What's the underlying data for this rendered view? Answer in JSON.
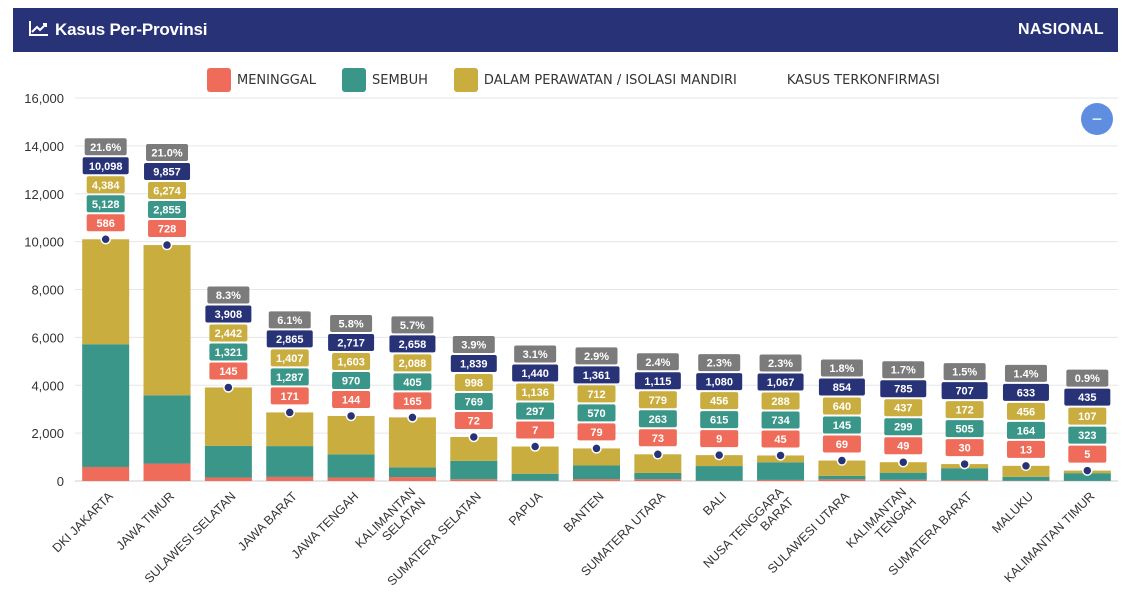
{
  "header": {
    "title": "Kasus Per-Provinsi",
    "scope": "NASIONAL",
    "icon": "line-chart-icon"
  },
  "zoom_button": {
    "label": "−",
    "icon": "minus-icon"
  },
  "colors": {
    "meninggal": "#ee6c59",
    "sembuh": "#3a9689",
    "perawatan": "#c9ad3f",
    "terkonfirmasi": "#283377",
    "percent": "#7b7b7b",
    "header": "#283377"
  },
  "chart_data": {
    "type": "bar",
    "stacked": true,
    "ylim": [
      0,
      16000
    ],
    "yticks": [
      "0",
      "2,000",
      "4,000",
      "6,000",
      "8,000",
      "10,000",
      "12,000",
      "14,000",
      "16,000"
    ],
    "ytick_values": [
      0,
      2000,
      4000,
      6000,
      8000,
      10000,
      12000,
      14000,
      16000
    ],
    "grid": true,
    "legend_position": "top-center",
    "categories": [
      "DKI JAKARTA",
      "JAWA TIMUR",
      "SULAWESI SELATAN",
      "JAWA BARAT",
      "JAWA TENGAH",
      "KALIMANTAN SELATAN",
      "SUMATERA SELATAN",
      "PAPUA",
      "BANTEN",
      "SUMATERA UTARA",
      "BALI",
      "NUSA TENGGARA BARAT",
      "SULAWESI UTARA",
      "KALIMANTAN TENGAH",
      "SUMATERA BARAT",
      "MALUKU",
      "KALIMANTAN TIMUR"
    ],
    "category_lines": [
      [
        "DKI JAKARTA"
      ],
      [
        "JAWA TIMUR"
      ],
      [
        "SULAWESI SELATAN"
      ],
      [
        "JAWA BARAT"
      ],
      [
        "JAWA TENGAH"
      ],
      [
        "KALIMANTAN",
        "SELATAN"
      ],
      [
        "SUMATERA SELATAN"
      ],
      [
        "PAPUA"
      ],
      [
        "BANTEN"
      ],
      [
        "SUMATERA UTARA"
      ],
      [
        "BALI"
      ],
      [
        "NUSA TENGGARA",
        "BARAT"
      ],
      [
        "SULAWESI UTARA"
      ],
      [
        "KALIMANTAN",
        "TENGAH"
      ],
      [
        "SUMATERA BARAT"
      ],
      [
        "MALUKU"
      ],
      [
        "KALIMANTAN TIMUR"
      ]
    ],
    "series": [
      {
        "name": "MENINGGAL",
        "key": "meninggal",
        "values": [
          586,
          728,
          145,
          171,
          144,
          165,
          72,
          7,
          79,
          73,
          9,
          45,
          69,
          49,
          30,
          13,
          5
        ]
      },
      {
        "name": "SEMBUH",
        "key": "sembuh",
        "values": [
          5128,
          2855,
          1321,
          1287,
          970,
          405,
          769,
          297,
          570,
          263,
          615,
          734,
          145,
          299,
          505,
          164,
          323
        ]
      },
      {
        "name": "DALAM PERAWATAN / ISOLASI MANDIRI",
        "key": "perawatan",
        "values": [
          4384,
          6274,
          2442,
          1407,
          1603,
          2088,
          998,
          1136,
          712,
          779,
          456,
          288,
          640,
          437,
          172,
          456,
          107
        ]
      }
    ],
    "confirmed": {
      "name": "KASUS TERKONFIRMASI",
      "values": [
        10098,
        9857,
        3908,
        2865,
        2717,
        2658,
        1839,
        1440,
        1361,
        1115,
        1080,
        1067,
        854,
        785,
        707,
        633,
        435
      ]
    },
    "percent_labels": [
      "21.6%",
      "21.0%",
      "8.3%",
      "6.1%",
      "5.8%",
      "5.7%",
      "3.9%",
      "3.1%",
      "2.9%",
      "2.4%",
      "2.3%",
      "2.3%",
      "1.8%",
      "1.7%",
      "1.5%",
      "1.4%",
      "0.9%"
    ],
    "value_labels": {
      "meninggal": [
        "586",
        "728",
        "145",
        "171",
        "144",
        "165",
        "72",
        "7",
        "79",
        "73",
        "9",
        "45",
        "69",
        "49",
        "30",
        "13",
        "5"
      ],
      "sembuh": [
        "5,128",
        "2,855",
        "1,321",
        "1,287",
        "970",
        "405",
        "769",
        "297",
        "570",
        "263",
        "615",
        "734",
        "145",
        "299",
        "505",
        "164",
        "323"
      ],
      "perawatan": [
        "4,384",
        "6,274",
        "2,442",
        "1,407",
        "1,603",
        "2,088",
        "998",
        "1,136",
        "712",
        "779",
        "456",
        "288",
        "640",
        "437",
        "172",
        "456",
        "107"
      ],
      "confirmed": [
        "10,098",
        "9,857",
        "3,908",
        "2,865",
        "2,717",
        "2,658",
        "1,839",
        "1,440",
        "1,361",
        "1,115",
        "1,080",
        "1,067",
        "854",
        "785",
        "707",
        "633",
        "435"
      ]
    }
  }
}
